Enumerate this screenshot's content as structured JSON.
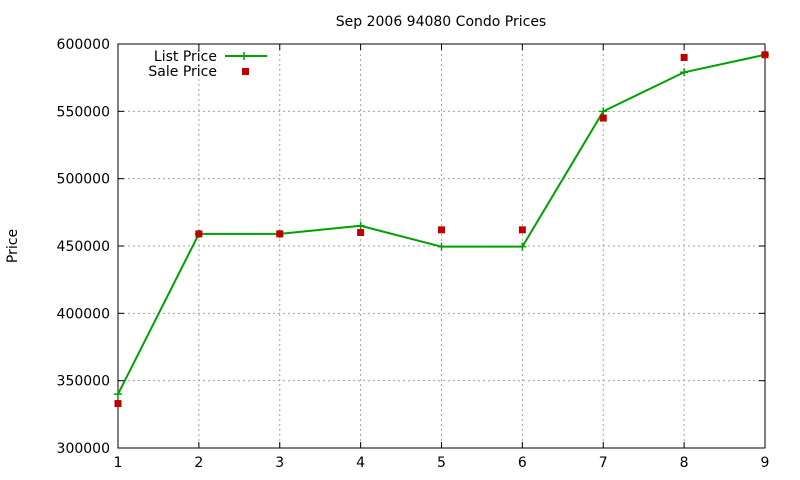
{
  "chart_data": {
    "type": "line",
    "title": "Sep 2006 94080 Condo Prices",
    "xlabel": "",
    "ylabel": "Price",
    "x": [
      1,
      2,
      3,
      4,
      5,
      6,
      7,
      8,
      9
    ],
    "xlim": [
      1,
      9
    ],
    "ylim": [
      300000,
      600000
    ],
    "xticks": [
      1,
      2,
      3,
      4,
      5,
      6,
      7,
      8,
      9
    ],
    "yticks": [
      300000,
      350000,
      400000,
      450000,
      500000,
      550000,
      600000
    ],
    "grid": true,
    "legend_position": "top-left",
    "series": [
      {
        "name": "List Price",
        "style": "line-with-plus-markers",
        "color": "#00a000",
        "values": [
          340000,
          459000,
          459000,
          465000,
          449500,
          449500,
          550000,
          579000,
          592000
        ]
      },
      {
        "name": "Sale Price",
        "style": "square-markers",
        "color": "#c00000",
        "values": [
          333000,
          459000,
          459000,
          460000,
          462000,
          462000,
          545000,
          590000,
          592000
        ]
      }
    ]
  }
}
